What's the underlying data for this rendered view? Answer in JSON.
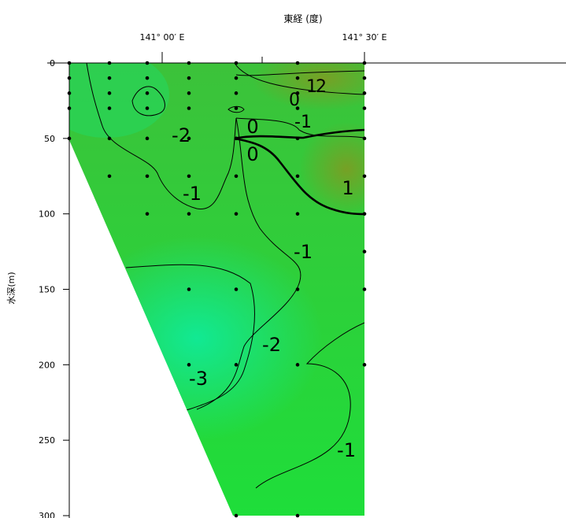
{
  "chart_data": {
    "type": "heatmap",
    "subtype": "filled-contour-section",
    "title": "",
    "xlabel": "東経 (度)",
    "ylabel": "水深(m)",
    "x_ticks": [
      "141° 00′ E",
      "141° 30′ E"
    ],
    "y_ticks": [
      0,
      50,
      100,
      150,
      200,
      250,
      300
    ],
    "ylim": [
      0,
      300
    ],
    "y_inverted": true,
    "grid": false,
    "contour_labels": [
      {
        "text": "2",
        "kind": "upper-right"
      },
      {
        "text": "1",
        "kind": "upper-right"
      },
      {
        "text": "0",
        "kind": "upper-right"
      },
      {
        "text": "-1",
        "kind": "upper-right"
      },
      {
        "text": "-2",
        "kind": "upper-left"
      },
      {
        "text": "0",
        "kind": "middle"
      },
      {
        "text": "0",
        "kind": "middle"
      },
      {
        "text": "-1",
        "kind": "left"
      },
      {
        "text": "1",
        "kind": "right"
      },
      {
        "text": "-1",
        "kind": "middle"
      },
      {
        "text": "-2",
        "kind": "lower-middle"
      },
      {
        "text": "-3",
        "kind": "lower-left"
      },
      {
        "text": "-1",
        "kind": "bottom-right"
      }
    ],
    "colors": {
      "warm": "#4fa82a",
      "mid": "#1ed42a",
      "cold": "#14e88e",
      "land": "#ffffff",
      "line": "#000000"
    }
  }
}
